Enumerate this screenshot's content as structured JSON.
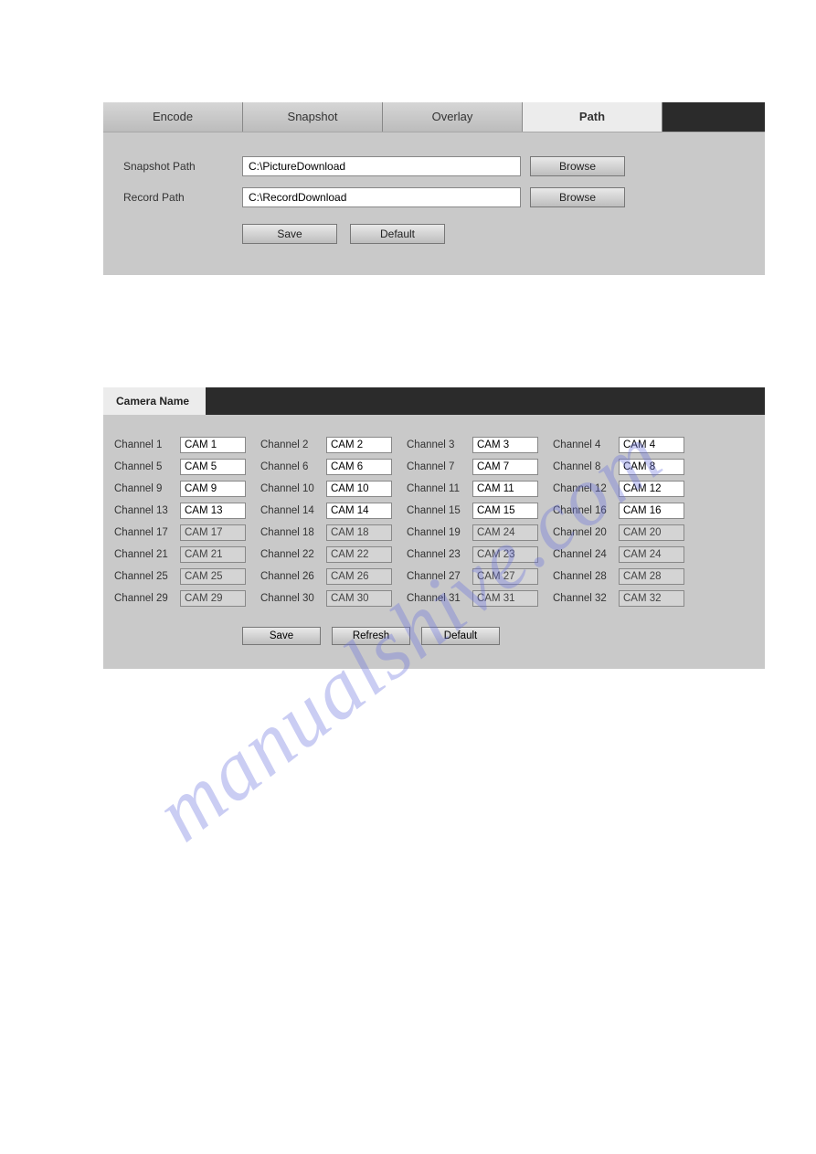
{
  "colors": {
    "panel_border": "#2b2b2b",
    "panel_bg": "#c9c9c9",
    "tab_inactive_top": "#d6d6d6",
    "tab_inactive_bottom": "#bcbcbc",
    "tab_active": "#ececec",
    "input_border": "#888888",
    "btn_top": "#e9e9e9",
    "btn_bottom": "#bdbdbd",
    "text": "#333333",
    "watermark": "rgba(104,111,222,0.35)"
  },
  "panel1": {
    "tabs": [
      {
        "label": "Encode",
        "active": false
      },
      {
        "label": "Snapshot",
        "active": false
      },
      {
        "label": "Overlay",
        "active": false
      },
      {
        "label": "Path",
        "active": true
      }
    ],
    "rows": [
      {
        "label": "Snapshot Path",
        "value": "C:\\PictureDownload",
        "browse": "Browse"
      },
      {
        "label": "Record Path",
        "value": "C:\\RecordDownload",
        "browse": "Browse"
      }
    ],
    "buttons": {
      "save": "Save",
      "default": "Default"
    }
  },
  "panel2": {
    "tab_label": "Camera Name",
    "channels": [
      {
        "label": "Channel 1",
        "value": "CAM 1",
        "disabled": false
      },
      {
        "label": "Channel 2",
        "value": "CAM 2",
        "disabled": false
      },
      {
        "label": "Channel 3",
        "value": "CAM 3",
        "disabled": false
      },
      {
        "label": "Channel 4",
        "value": "CAM 4",
        "disabled": false
      },
      {
        "label": "Channel 5",
        "value": "CAM 5",
        "disabled": false
      },
      {
        "label": "Channel 6",
        "value": "CAM 6",
        "disabled": false
      },
      {
        "label": "Channel 7",
        "value": "CAM 7",
        "disabled": false
      },
      {
        "label": "Channel 8",
        "value": "CAM 8",
        "disabled": false
      },
      {
        "label": "Channel 9",
        "value": "CAM 9",
        "disabled": false
      },
      {
        "label": "Channel 10",
        "value": "CAM 10",
        "disabled": false
      },
      {
        "label": "Channel 11",
        "value": "CAM 11",
        "disabled": false
      },
      {
        "label": "Channel 12",
        "value": "CAM 12",
        "disabled": false
      },
      {
        "label": "Channel 13",
        "value": "CAM 13",
        "disabled": false
      },
      {
        "label": "Channel 14",
        "value": "CAM 14",
        "disabled": false
      },
      {
        "label": "Channel 15",
        "value": "CAM 15",
        "disabled": false
      },
      {
        "label": "Channel 16",
        "value": "CAM 16",
        "disabled": false
      },
      {
        "label": "Channel 17",
        "value": "CAM 17",
        "disabled": true
      },
      {
        "label": "Channel 18",
        "value": "CAM 18",
        "disabled": true
      },
      {
        "label": "Channel 19",
        "value": "CAM 24",
        "disabled": true
      },
      {
        "label": "Channel 20",
        "value": "CAM 20",
        "disabled": true
      },
      {
        "label": "Channel 21",
        "value": "CAM 21",
        "disabled": true
      },
      {
        "label": "Channel 22",
        "value": "CAM 22",
        "disabled": true
      },
      {
        "label": "Channel 23",
        "value": "CAM 23",
        "disabled": true
      },
      {
        "label": "Channel 24",
        "value": "CAM 24",
        "disabled": true
      },
      {
        "label": "Channel 25",
        "value": "CAM 25",
        "disabled": true
      },
      {
        "label": "Channel 26",
        "value": "CAM 26",
        "disabled": true
      },
      {
        "label": "Channel 27",
        "value": "CAM 27",
        "disabled": true
      },
      {
        "label": "Channel 28",
        "value": "CAM 28",
        "disabled": true
      },
      {
        "label": "Channel 29",
        "value": "CAM 29",
        "disabled": true
      },
      {
        "label": "Channel 30",
        "value": "CAM 30",
        "disabled": true
      },
      {
        "label": "Channel 31",
        "value": "CAM 31",
        "disabled": true
      },
      {
        "label": "Channel 32",
        "value": "CAM 32",
        "disabled": true
      }
    ],
    "buttons": {
      "save": "Save",
      "refresh": "Refresh",
      "default": "Default"
    }
  },
  "watermark_text": "manualshive.com"
}
